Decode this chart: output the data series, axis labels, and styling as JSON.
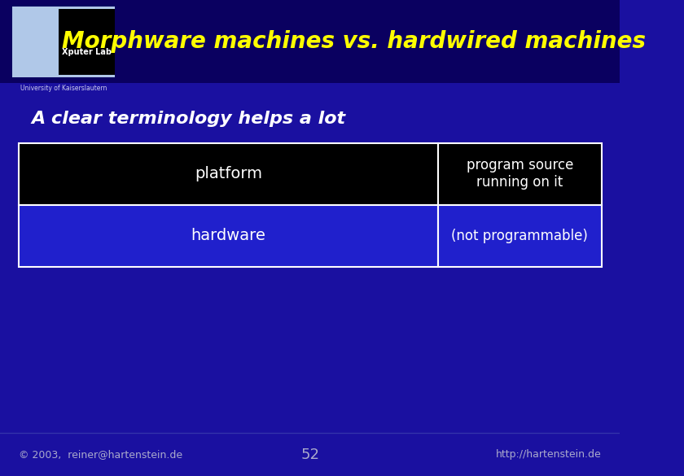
{
  "title": "Morphware machines vs. hardwired machines",
  "subtitle": "A clear terminology helps a lot",
  "bg_color": "#1a10a0",
  "header_bg": "#0a0060",
  "title_color": "#ffff00",
  "subtitle_color": "#ffffff",
  "footer_left": "© 2003,  reiner@hartenstein.de",
  "footer_center": "52",
  "footer_right": "http://hartenstein.de",
  "footer_color": "#aaaacc",
  "table_rows": [
    {
      "col1": "platform",
      "col2": "program source\nrunning on it",
      "row_bg": "#000000"
    },
    {
      "col1": "hardware",
      "col2": "(not programmable)",
      "row_bg": "#2020cc"
    }
  ],
  "table_border_color": "#ffffff",
  "table_text_color": "#ffffff",
  "col_split": 0.72,
  "logo_bg": "#b0c8e8",
  "logo_inner_bg": "#000000",
  "logo_text": "Xputer Lab",
  "logo_text_color": "#ffffff",
  "univ_text": "University of Kaiserslautern",
  "univ_text_color": "#ccccee"
}
